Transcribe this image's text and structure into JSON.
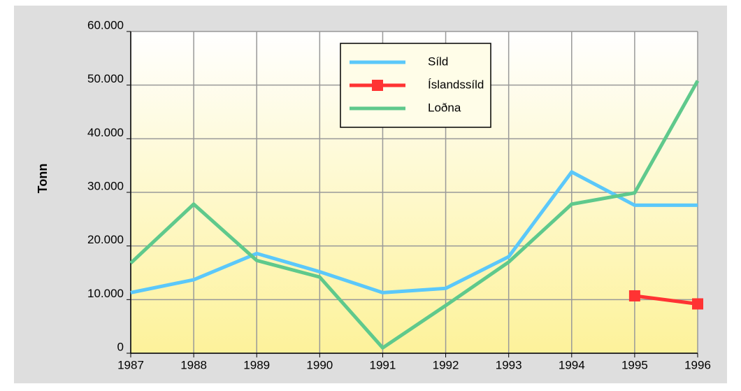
{
  "chart_data": {
    "type": "line",
    "y_label": "Tonn",
    "categories": [
      "1987",
      "1988",
      "1989",
      "1990",
      "1991",
      "1992",
      "1993",
      "1994",
      "1995",
      "1996"
    ],
    "series": [
      {
        "name": "Síld",
        "color": "#5bc8fa",
        "marker": false,
        "values": [
          11300,
          13700,
          18600,
          15200,
          11300,
          12100,
          18000,
          33800,
          27600,
          27600
        ]
      },
      {
        "name": "Íslandssíld",
        "color": "#ff3333",
        "marker": true,
        "values": [
          null,
          null,
          null,
          null,
          null,
          null,
          null,
          null,
          10700,
          9200
        ]
      },
      {
        "name": "Loðna",
        "color": "#5fc98c",
        "marker": false,
        "values": [
          16800,
          27800,
          17300,
          14200,
          1000,
          8900,
          17000,
          27800,
          29900,
          50800
        ]
      }
    ],
    "ylim": [
      0,
      60000
    ],
    "yticks": [
      0,
      {
        "value": 10000,
        "label": "10.000"
      },
      {
        "value": 20000,
        "label": "20.000"
      },
      {
        "value": 30000,
        "label": "30.000"
      },
      {
        "value": 40000,
        "label": "40.000"
      },
      {
        "value": 50000,
        "label": "50.000"
      },
      {
        "value": 60000,
        "label": "60.000"
      }
    ],
    "grid": true
  }
}
